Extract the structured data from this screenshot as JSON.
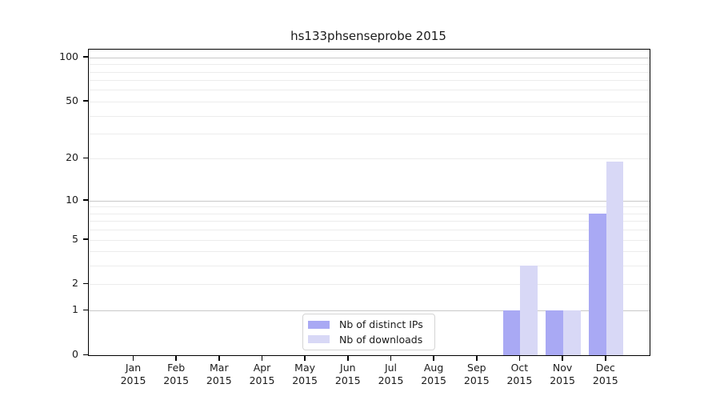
{
  "figure": {
    "title": "hs133phsenseprobe 2015"
  },
  "chart_data": {
    "type": "bar",
    "title": "hs133phsenseprobe 2015",
    "xlabel": "",
    "ylabel": "",
    "categories": [
      "Jan",
      "Feb",
      "Mar",
      "Apr",
      "May",
      "Jun",
      "Jul",
      "Aug",
      "Sep",
      "Oct",
      "Nov",
      "Dec"
    ],
    "category_year_label": "2015",
    "series": [
      {
        "name": "Nb of distinct IPs",
        "color": "#a9a9f4",
        "values": [
          0,
          0,
          0,
          0,
          0,
          0,
          0,
          0,
          0,
          1,
          1,
          8
        ]
      },
      {
        "name": "Nb of downloads",
        "color": "#d8d8f6",
        "values": [
          0,
          0,
          0,
          0,
          0,
          0,
          0,
          0,
          0,
          3,
          1,
          19
        ]
      }
    ],
    "yscale": "log1p",
    "ylim": [
      0,
      113
    ],
    "yticks": [
      0,
      1,
      2,
      5,
      10,
      20,
      50,
      100
    ],
    "grid": "horizontal",
    "legend_position": "lower-center",
    "colors": {
      "major_grid": "#c8c8c8",
      "minor_grid": "#ececec",
      "axis": "#000000",
      "text": "#1a1a1a"
    }
  }
}
